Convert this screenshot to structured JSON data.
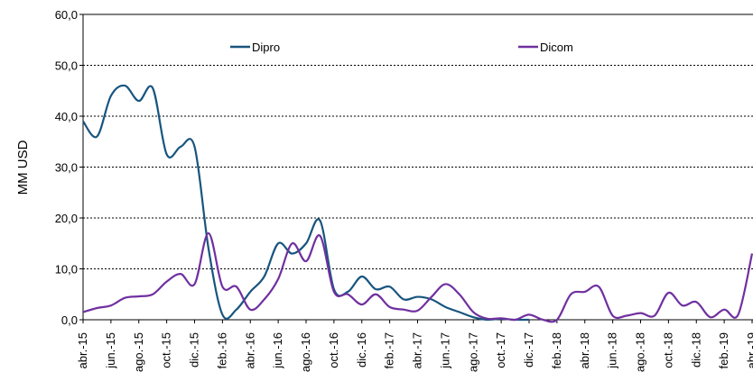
{
  "chart_data": {
    "type": "line",
    "y_label": "MM USD",
    "categories": [
      "abr.-15",
      null,
      "jun.-15",
      null,
      "ago.-15",
      null,
      "oct.-15",
      null,
      "dic.-15",
      null,
      "feb.-16",
      null,
      "abr.-16",
      null,
      "jun.-16",
      null,
      "ago.-16",
      null,
      "oct.-16",
      null,
      "dic.-16",
      null,
      "feb.-17",
      null,
      "abr.-17",
      null,
      "jun.-17",
      null,
      "ago.-17",
      null,
      "oct.-17",
      null,
      "dic.-17",
      null,
      "feb.-18",
      null,
      "abr.-18",
      null,
      "jun.-18",
      null,
      "ago.-18",
      null,
      "oct.-18",
      null,
      "dic.-18",
      null,
      "feb.-19",
      null,
      "abr.-19"
    ],
    "series": [
      {
        "name": "Dipro",
        "color": "#17557f",
        "values": [
          39,
          36,
          44,
          46,
          43,
          45.5,
          32.5,
          34,
          34,
          14,
          1,
          2,
          5.5,
          8.5,
          15,
          13,
          15,
          19.5,
          6,
          5.5,
          8.5,
          6,
          6.5,
          4,
          4.5,
          4,
          2.5,
          1.5,
          0.5,
          0,
          0.2,
          0,
          0,
          null,
          null,
          null,
          null,
          null,
          null,
          null,
          null,
          null,
          null,
          null,
          null,
          null,
          null,
          null,
          null
        ]
      },
      {
        "name": "Dicom",
        "color": "#7030a0",
        "values": [
          1.5,
          2.3,
          2.8,
          4.3,
          4.6,
          5,
          7.5,
          9,
          7,
          17,
          6.5,
          6.5,
          2,
          4,
          8,
          15,
          11.5,
          16.5,
          5.5,
          5,
          3,
          5,
          2.5,
          2,
          1.8,
          4.5,
          7,
          5,
          1.5,
          0.2,
          0.3,
          0,
          1,
          0,
          0,
          5,
          5.5,
          6.5,
          0.8,
          0.8,
          1.3,
          0.8,
          5.3,
          2.8,
          3.5,
          0.5,
          2,
          1,
          13
        ]
      }
    ],
    "ylim": [
      0,
      60
    ],
    "yticks": [
      {
        "value": 0,
        "label": "0,0"
      },
      {
        "value": 10,
        "label": "10,0"
      },
      {
        "value": 20,
        "label": "20,0"
      },
      {
        "value": 30,
        "label": "30,0"
      },
      {
        "value": 40,
        "label": "40,0"
      },
      {
        "value": 50,
        "label": "50,0"
      },
      {
        "value": 60,
        "label": "60,0"
      }
    ],
    "grid": true,
    "legend": "top"
  }
}
